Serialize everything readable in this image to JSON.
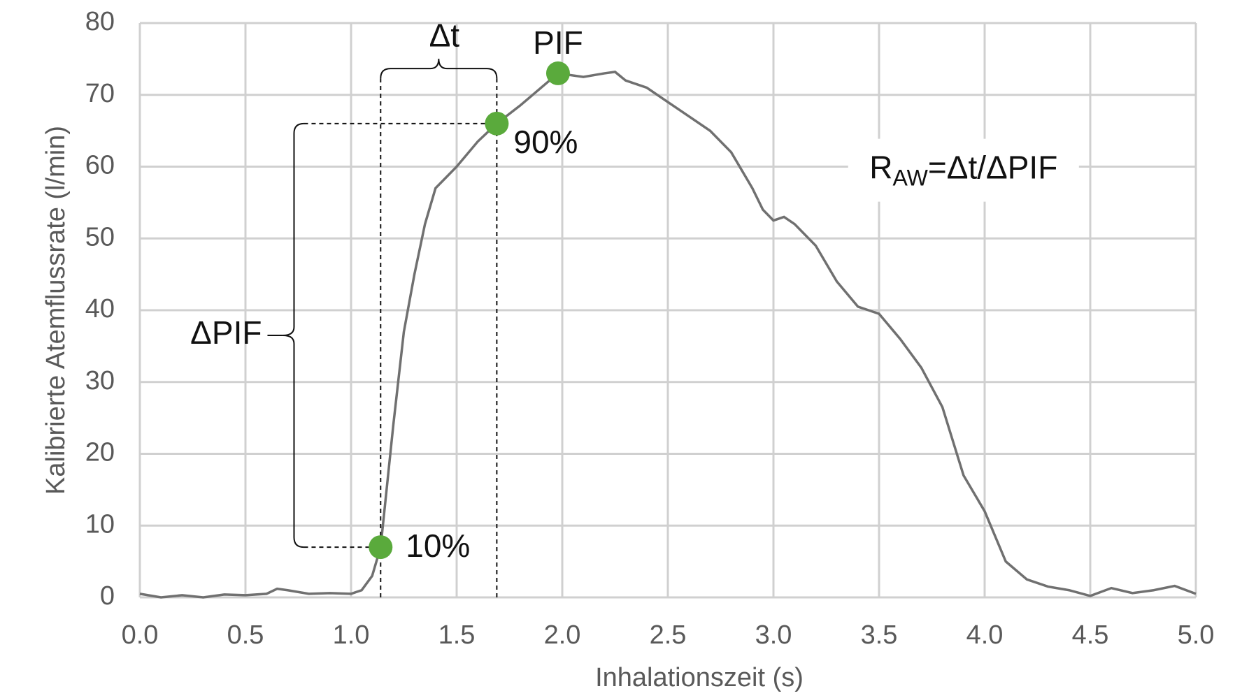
{
  "chart_data": {
    "type": "line",
    "x_label": "Inhalationszeit (s)",
    "y_label": "Kalibrierte Atemflussrate (l/min)",
    "x": [
      0,
      0.1,
      0.2,
      0.3,
      0.4,
      0.5,
      0.6,
      0.65,
      0.7,
      0.8,
      0.9,
      1.0,
      1.05,
      1.1,
      1.14,
      1.2,
      1.25,
      1.3,
      1.35,
      1.4,
      1.5,
      1.6,
      1.69,
      1.8,
      1.9,
      1.98,
      2.1,
      2.2,
      2.25,
      2.3,
      2.4,
      2.5,
      2.6,
      2.7,
      2.8,
      2.9,
      2.95,
      3.0,
      3.05,
      3.1,
      3.2,
      3.3,
      3.4,
      3.5,
      3.6,
      3.7,
      3.8,
      3.9,
      4.0,
      4.1,
      4.2,
      4.3,
      4.4,
      4.5,
      4.6,
      4.7,
      4.8,
      4.9,
      5.0
    ],
    "series": [
      {
        "color": "#707070",
        "values": [
          0.5,
          0,
          0.3,
          0,
          0.4,
          0.3,
          0.5,
          1.2,
          1,
          0.5,
          0.6,
          0.5,
          1,
          3,
          7,
          24,
          37,
          45,
          52,
          57,
          60,
          63.5,
          66,
          68.5,
          71,
          73,
          72.5,
          73,
          73.2,
          72,
          71,
          69,
          67,
          65,
          62,
          57,
          54,
          52.5,
          53,
          52,
          49,
          44,
          40.5,
          39.5,
          36,
          32,
          26.5,
          17,
          12,
          5,
          2.5,
          1.5,
          1,
          0.2,
          1.3,
          0.6,
          1,
          1.6,
          0.5
        ]
      }
    ],
    "highlights": [
      {
        "label": "10%",
        "x": 1.14,
        "y": 7,
        "color": "#5aaa3c"
      },
      {
        "label": "90%",
        "x": 1.69,
        "y": 66,
        "color": "#5aaa3c"
      },
      {
        "label": "PIF",
        "x": 1.98,
        "y": 73,
        "color": "#5aaa3c"
      }
    ],
    "annotations": {
      "delta_t": "Δt",
      "delta_pif": "ΔPIF",
      "formula": {
        "base": "R",
        "sub": "AW",
        "rest": "=Δt/ΔPIF"
      }
    },
    "xlim": [
      0,
      5
    ],
    "ylim": [
      0,
      80
    ],
    "xticks": [
      {
        "value": 0,
        "label": "0.0"
      },
      0.5,
      {
        "value": 1,
        "label": "1.0"
      },
      1.5,
      {
        "value": 2,
        "label": "2.0"
      },
      2.5,
      {
        "value": 3,
        "label": "3.0"
      },
      3.5,
      {
        "value": 4,
        "label": "4.0"
      },
      4.5,
      {
        "value": 5,
        "label": "5.0"
      }
    ],
    "yticks": [
      0,
      10,
      20,
      30,
      40,
      50,
      60,
      70,
      80
    ],
    "grid": true
  }
}
